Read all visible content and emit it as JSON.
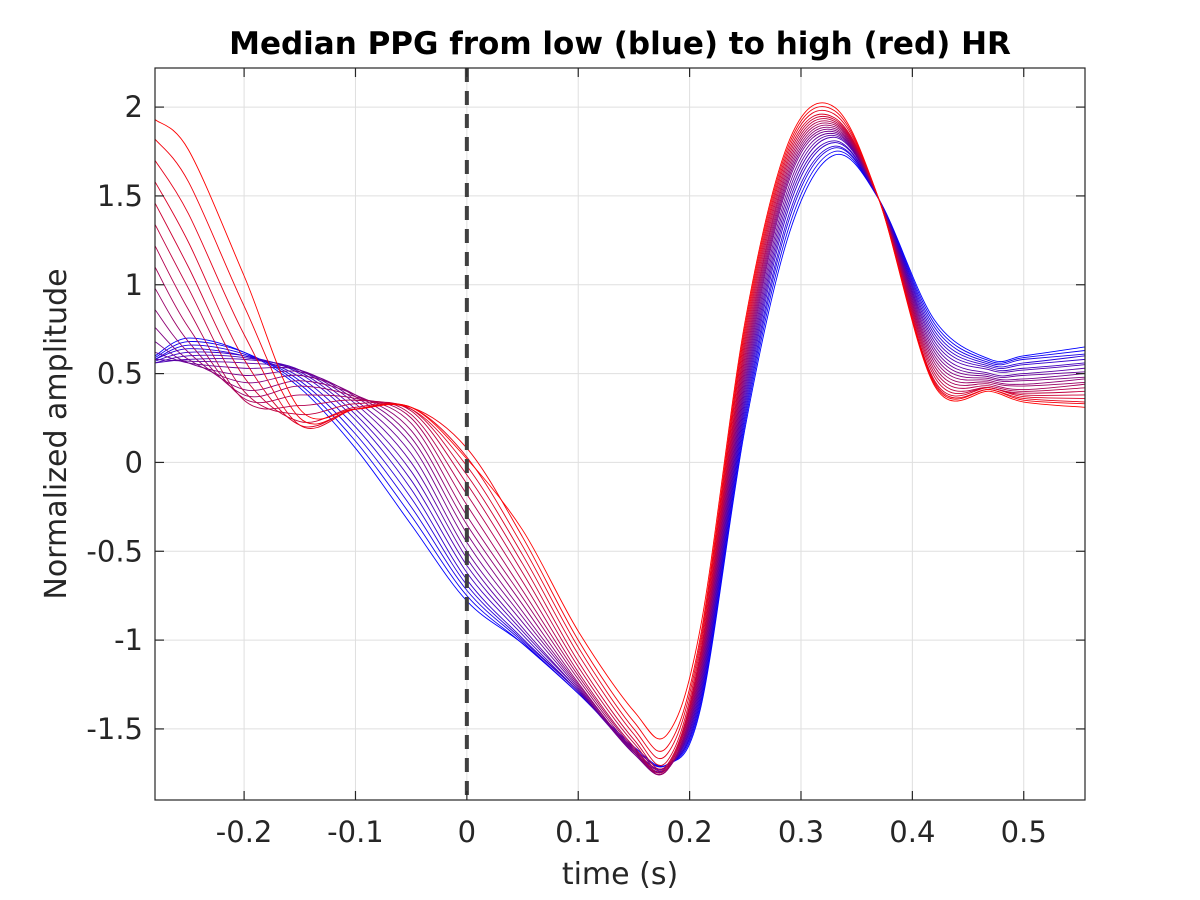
{
  "chart_data": {
    "type": "line",
    "title": "Median PPG from low (blue) to high (red) HR",
    "xlabel": "time (s)",
    "ylabel": "Normalized amplitude",
    "xlim": [
      -0.28,
      0.555
    ],
    "ylim": [
      -1.9,
      2.22
    ],
    "x_ticks": [
      -0.2,
      -0.1,
      0,
      0.1,
      0.2,
      0.3,
      0.4,
      0.5
    ],
    "x_tick_labels": [
      "-0.2",
      "-0.1",
      "0",
      "0.1",
      "0.2",
      "0.3",
      "0.4",
      "0.5"
    ],
    "y_ticks": [
      -1.5,
      -1,
      -0.5,
      0,
      0.5,
      1,
      1.5,
      2
    ],
    "y_tick_labels": [
      "-1.5",
      "-1",
      "-0.5",
      "0",
      "0.5",
      "1",
      "1.5",
      "2"
    ],
    "grid": true,
    "legend": "none",
    "colors": {
      "low_hr": "#0000ff",
      "high_hr": "#ff0000",
      "marker_line": "#404040"
    },
    "vertical_marker": {
      "x": 0,
      "style": "dashed"
    },
    "series_count": 21,
    "series": [
      {
        "x": [
          -0.28,
          -0.25,
          -0.2,
          -0.15,
          -0.1,
          -0.05,
          0,
          0.05,
          0.1,
          0.15,
          0.18,
          0.21,
          0.25,
          0.29,
          0.33,
          0.37,
          0.42,
          0.47,
          0.5,
          0.555
        ],
        "values": [
          0.6,
          0.7,
          0.62,
          0.42,
          0.08,
          -0.35,
          -0.78,
          -1.02,
          -1.3,
          -1.6,
          -1.7,
          -1.38,
          0.2,
          1.3,
          1.73,
          1.48,
          0.8,
          0.58,
          0.6,
          0.65
        ]
      },
      {
        "x": [
          -0.28,
          -0.25,
          -0.2,
          -0.15,
          -0.1,
          -0.05,
          0,
          0.05,
          0.1,
          0.15,
          0.18,
          0.21,
          0.25,
          0.29,
          0.33,
          0.37,
          0.42,
          0.47,
          0.5,
          0.555
        ],
        "values": [
          0.59,
          0.68,
          0.62,
          0.44,
          0.12,
          -0.3,
          -0.75,
          -1.02,
          -1.3,
          -1.61,
          -1.7,
          -1.36,
          0.23,
          1.34,
          1.75,
          1.48,
          0.78,
          0.57,
          0.59,
          0.63
        ]
      },
      {
        "x": [
          -0.28,
          -0.25,
          -0.2,
          -0.15,
          -0.1,
          -0.05,
          0,
          0.05,
          0.1,
          0.15,
          0.18,
          0.21,
          0.25,
          0.29,
          0.33,
          0.37,
          0.42,
          0.47,
          0.5,
          0.555
        ],
        "values": [
          0.58,
          0.66,
          0.61,
          0.46,
          0.16,
          -0.25,
          -0.72,
          -1.01,
          -1.3,
          -1.61,
          -1.7,
          -1.34,
          0.26,
          1.38,
          1.77,
          1.48,
          0.76,
          0.56,
          0.58,
          0.61
        ]
      },
      {
        "x": [
          -0.28,
          -0.25,
          -0.2,
          -0.15,
          -0.1,
          -0.05,
          0,
          0.05,
          0.1,
          0.15,
          0.18,
          0.21,
          0.25,
          0.29,
          0.33,
          0.37,
          0.42,
          0.47,
          0.5,
          0.555
        ],
        "values": [
          0.58,
          0.64,
          0.6,
          0.48,
          0.2,
          -0.2,
          -0.69,
          -1.0,
          -1.29,
          -1.62,
          -1.71,
          -1.32,
          0.29,
          1.41,
          1.78,
          1.48,
          0.74,
          0.55,
          0.56,
          0.6
        ]
      },
      {
        "x": [
          -0.28,
          -0.25,
          -0.2,
          -0.15,
          -0.1,
          -0.05,
          0,
          0.05,
          0.1,
          0.15,
          0.18,
          0.21,
          0.25,
          0.29,
          0.33,
          0.37,
          0.42,
          0.47,
          0.5,
          0.555
        ],
        "values": [
          0.57,
          0.62,
          0.6,
          0.5,
          0.24,
          -0.15,
          -0.66,
          -0.99,
          -1.29,
          -1.62,
          -1.71,
          -1.3,
          0.32,
          1.45,
          1.8,
          1.48,
          0.72,
          0.54,
          0.55,
          0.58
        ]
      },
      {
        "x": [
          -0.28,
          -0.25,
          -0.2,
          -0.15,
          -0.1,
          -0.05,
          0,
          0.05,
          0.1,
          0.15,
          0.18,
          0.21,
          0.25,
          0.29,
          0.33,
          0.37,
          0.42,
          0.47,
          0.5,
          0.555
        ],
        "values": [
          0.56,
          0.6,
          0.59,
          0.51,
          0.27,
          -0.1,
          -0.62,
          -0.97,
          -1.29,
          -1.63,
          -1.71,
          -1.28,
          0.35,
          1.48,
          1.81,
          1.48,
          0.7,
          0.53,
          0.53,
          0.56
        ]
      },
      {
        "x": [
          -0.28,
          -0.25,
          -0.2,
          -0.15,
          -0.1,
          -0.05,
          0,
          0.05,
          0.1,
          0.15,
          0.18,
          0.21,
          0.25,
          0.29,
          0.33,
          0.37,
          0.42,
          0.47,
          0.5,
          0.555
        ],
        "values": [
          0.56,
          0.58,
          0.58,
          0.52,
          0.3,
          -0.05,
          -0.58,
          -0.95,
          -1.28,
          -1.63,
          -1.72,
          -1.26,
          0.38,
          1.51,
          1.83,
          1.48,
          0.68,
          0.52,
          0.52,
          0.55
        ]
      },
      {
        "x": [
          -0.28,
          -0.25,
          -0.2,
          -0.15,
          -0.1,
          -0.05,
          0,
          0.05,
          0.1,
          0.15,
          0.18,
          0.21,
          0.25,
          0.29,
          0.33,
          0.37,
          0.42,
          0.47,
          0.5,
          0.555
        ],
        "values": [
          0.58,
          0.57,
          0.56,
          0.52,
          0.33,
          0.0,
          -0.54,
          -0.93,
          -1.28,
          -1.63,
          -1.72,
          -1.24,
          0.41,
          1.54,
          1.84,
          1.48,
          0.66,
          0.5,
          0.5,
          0.53
        ]
      },
      {
        "x": [
          -0.28,
          -0.25,
          -0.2,
          -0.15,
          -0.1,
          -0.05,
          0,
          0.05,
          0.1,
          0.15,
          0.18,
          0.21,
          0.25,
          0.29,
          0.33,
          0.37,
          0.42,
          0.47,
          0.5,
          0.555
        ],
        "values": [
          0.62,
          0.56,
          0.53,
          0.52,
          0.35,
          0.05,
          -0.5,
          -0.9,
          -1.27,
          -1.64,
          -1.72,
          -1.22,
          0.44,
          1.57,
          1.85,
          1.48,
          0.64,
          0.49,
          0.49,
          0.51
        ]
      },
      {
        "x": [
          -0.28,
          -0.25,
          -0.2,
          -0.15,
          -0.1,
          -0.05,
          0,
          0.05,
          0.1,
          0.15,
          0.18,
          0.21,
          0.25,
          0.29,
          0.33,
          0.37,
          0.42,
          0.47,
          0.5,
          0.555
        ],
        "values": [
          0.68,
          0.56,
          0.49,
          0.51,
          0.37,
          0.1,
          -0.45,
          -0.87,
          -1.26,
          -1.64,
          -1.73,
          -1.2,
          0.47,
          1.6,
          1.86,
          1.48,
          0.62,
          0.48,
          0.47,
          0.5
        ]
      },
      {
        "x": [
          -0.28,
          -0.25,
          -0.2,
          -0.15,
          -0.1,
          -0.05,
          0,
          0.05,
          0.1,
          0.15,
          0.18,
          0.21,
          0.25,
          0.29,
          0.33,
          0.37,
          0.42,
          0.47,
          0.5,
          0.555
        ],
        "values": [
          0.76,
          0.58,
          0.45,
          0.49,
          0.38,
          0.14,
          -0.4,
          -0.84,
          -1.25,
          -1.63,
          -1.73,
          -1.18,
          0.5,
          1.62,
          1.87,
          1.48,
          0.6,
          0.47,
          0.46,
          0.48
        ]
      },
      {
        "x": [
          -0.28,
          -0.25,
          -0.2,
          -0.15,
          -0.1,
          -0.05,
          0,
          0.05,
          0.1,
          0.15,
          0.18,
          0.21,
          0.25,
          0.29,
          0.33,
          0.37,
          0.42,
          0.47,
          0.5,
          0.555
        ],
        "values": [
          0.86,
          0.62,
          0.41,
          0.46,
          0.38,
          0.18,
          -0.35,
          -0.8,
          -1.24,
          -1.63,
          -1.73,
          -1.16,
          0.53,
          1.64,
          1.88,
          1.48,
          0.58,
          0.46,
          0.44,
          0.47
        ]
      },
      {
        "x": [
          -0.28,
          -0.25,
          -0.2,
          -0.15,
          -0.1,
          -0.05,
          0,
          0.05,
          0.1,
          0.15,
          0.18,
          0.21,
          0.25,
          0.29,
          0.33,
          0.37,
          0.42,
          0.47,
          0.5,
          0.555
        ],
        "values": [
          0.98,
          0.68,
          0.38,
          0.43,
          0.37,
          0.22,
          -0.3,
          -0.76,
          -1.22,
          -1.62,
          -1.73,
          -1.14,
          0.56,
          1.66,
          1.89,
          1.48,
          0.56,
          0.45,
          0.43,
          0.45
        ]
      },
      {
        "x": [
          -0.28,
          -0.25,
          -0.2,
          -0.15,
          -0.1,
          -0.05,
          0,
          0.05,
          0.1,
          0.15,
          0.18,
          0.21,
          0.25,
          0.29,
          0.33,
          0.37,
          0.42,
          0.47,
          0.5,
          0.555
        ],
        "values": [
          1.1,
          0.76,
          0.36,
          0.38,
          0.36,
          0.25,
          -0.24,
          -0.72,
          -1.2,
          -1.61,
          -1.72,
          -1.12,
          0.59,
          1.68,
          1.9,
          1.48,
          0.54,
          0.44,
          0.41,
          0.44
        ]
      },
      {
        "x": [
          -0.28,
          -0.25,
          -0.2,
          -0.15,
          -0.1,
          -0.05,
          0,
          0.05,
          0.1,
          0.15,
          0.18,
          0.21,
          0.25,
          0.29,
          0.33,
          0.37,
          0.42,
          0.47,
          0.5,
          0.555
        ],
        "values": [
          1.22,
          0.86,
          0.35,
          0.32,
          0.35,
          0.27,
          -0.18,
          -0.67,
          -1.18,
          -1.6,
          -1.72,
          -1.1,
          0.62,
          1.7,
          1.91,
          1.48,
          0.52,
          0.43,
          0.4,
          0.42
        ]
      },
      {
        "x": [
          -0.28,
          -0.25,
          -0.2,
          -0.15,
          -0.1,
          -0.05,
          0,
          0.05,
          0.1,
          0.15,
          0.18,
          0.21,
          0.25,
          0.29,
          0.33,
          0.37,
          0.42,
          0.47,
          0.5,
          0.555
        ],
        "values": [
          1.34,
          0.98,
          0.4,
          0.27,
          0.33,
          0.29,
          -0.12,
          -0.62,
          -1.15,
          -1.58,
          -1.71,
          -1.08,
          0.65,
          1.72,
          1.92,
          1.48,
          0.5,
          0.42,
          0.39,
          0.4
        ]
      },
      {
        "x": [
          -0.28,
          -0.25,
          -0.2,
          -0.15,
          -0.1,
          -0.05,
          0,
          0.05,
          0.1,
          0.15,
          0.18,
          0.21,
          0.25,
          0.29,
          0.33,
          0.37,
          0.42,
          0.47,
          0.5,
          0.555
        ],
        "values": [
          1.46,
          1.1,
          0.48,
          0.23,
          0.31,
          0.3,
          -0.07,
          -0.57,
          -1.12,
          -1.56,
          -1.7,
          -1.06,
          0.68,
          1.74,
          1.93,
          1.48,
          0.48,
          0.42,
          0.38,
          0.38
        ]
      },
      {
        "x": [
          -0.28,
          -0.25,
          -0.2,
          -0.15,
          -0.1,
          -0.05,
          0,
          0.05,
          0.1,
          0.15,
          0.18,
          0.21,
          0.25,
          0.29,
          0.33,
          0.37,
          0.42,
          0.47,
          0.5,
          0.555
        ],
        "values": [
          1.58,
          1.24,
          0.58,
          0.21,
          0.3,
          0.3,
          -0.02,
          -0.52,
          -1.08,
          -1.53,
          -1.68,
          -1.03,
          0.71,
          1.76,
          1.94,
          1.48,
          0.46,
          0.42,
          0.37,
          0.36
        ]
      },
      {
        "x": [
          -0.28,
          -0.25,
          -0.2,
          -0.15,
          -0.1,
          -0.05,
          0,
          0.05,
          0.1,
          0.15,
          0.18,
          0.21,
          0.25,
          0.29,
          0.33,
          0.37,
          0.42,
          0.47,
          0.5,
          0.555
        ],
        "values": [
          1.7,
          1.4,
          0.72,
          0.21,
          0.3,
          0.31,
          0.03,
          -0.47,
          -1.04,
          -1.5,
          -1.64,
          -1.0,
          0.74,
          1.78,
          1.96,
          1.48,
          0.45,
          0.41,
          0.36,
          0.34
        ]
      },
      {
        "x": [
          -0.28,
          -0.25,
          -0.2,
          -0.15,
          -0.1,
          -0.05,
          0,
          0.05,
          0.1,
          0.15,
          0.18,
          0.21,
          0.25,
          0.29,
          0.33,
          0.37,
          0.42,
          0.47,
          0.5,
          0.555
        ],
        "values": [
          1.82,
          1.58,
          0.88,
          0.25,
          0.3,
          0.31,
          0.08,
          -0.42,
          -1.0,
          -1.46,
          -1.6,
          -0.97,
          0.77,
          1.8,
          1.98,
          1.48,
          0.44,
          0.41,
          0.35,
          0.33
        ]
      },
      {
        "x": [
          -0.28,
          -0.25,
          -0.2,
          -0.15,
          -0.1,
          -0.05,
          0,
          0.05,
          0.1,
          0.15,
          0.18,
          0.21,
          0.25,
          0.29,
          0.33,
          0.37,
          0.42,
          0.47,
          0.5,
          0.555
        ],
        "values": [
          1.93,
          1.76,
          1.05,
          0.3,
          0.3,
          0.31,
          0.02,
          -0.38,
          -0.95,
          -1.4,
          -1.53,
          -0.92,
          0.8,
          1.82,
          2.0,
          1.48,
          0.43,
          0.4,
          0.34,
          0.31
        ]
      }
    ]
  }
}
